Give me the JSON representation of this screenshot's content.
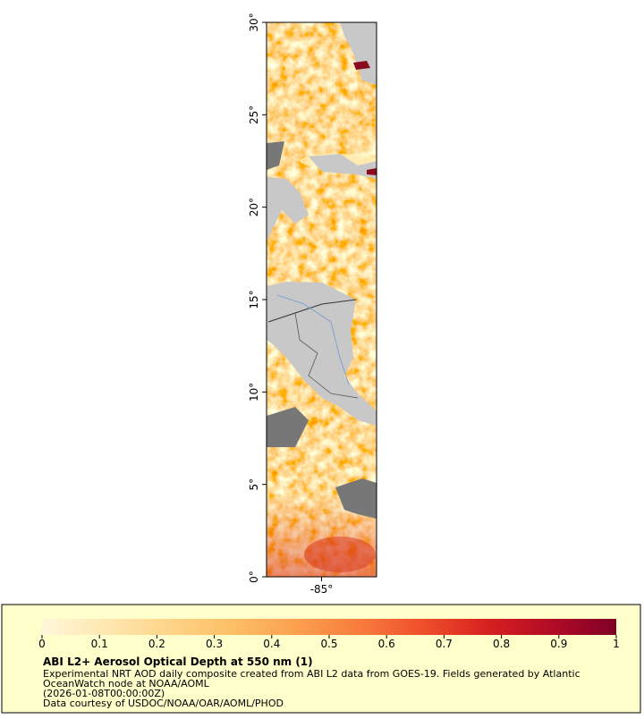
{
  "chart_data": {
    "type": "map",
    "title": "ABI L2+ Aerosol Optical Depth at 550 nm (1)",
    "description_lines": [
      "Experimental NRT AOD daily composite created from ABI L2 data from GOES-19. Fields generated by Atlantic",
      "OceanWatch node at NOAA/AOML",
      "(2026-01-08T00:00:00Z)",
      "Data courtesy of USDOC/NOAA/OAR/AOML/PHOD"
    ],
    "xlim": [
      -88,
      -82
    ],
    "xticks": [
      {
        "value": -85,
        "label": "-85°"
      }
    ],
    "ylim": [
      0,
      30
    ],
    "yticks": [
      {
        "value": 0,
        "label": "0°"
      },
      {
        "value": 5,
        "label": "5°"
      },
      {
        "value": 10,
        "label": "10°"
      },
      {
        "value": 15,
        "label": "15°"
      },
      {
        "value": 20,
        "label": "20°"
      },
      {
        "value": 25,
        "label": "25°"
      },
      {
        "value": 30,
        "label": "30°"
      }
    ],
    "colorbar": {
      "range": [
        0,
        1
      ],
      "ticks": [
        0,
        0.1,
        0.2,
        0.3,
        0.4,
        0.5,
        0.6,
        0.7,
        0.8,
        0.9,
        1
      ],
      "colors": [
        "#fff6db",
        "#ffe8b0",
        "#fed488",
        "#fdbe65",
        "#fca04e",
        "#f87b3c",
        "#ee4e2b",
        "#d6201f",
        "#b10b26",
        "#800026"
      ]
    }
  }
}
